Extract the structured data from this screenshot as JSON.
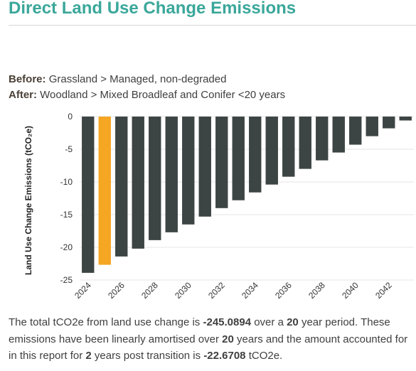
{
  "header": {
    "title": "Direct Land Use Change Emissions"
  },
  "transition": {
    "before_label": "Before:",
    "before_value": "Grassland > Managed, non-degraded",
    "after_label": "After:",
    "after_value": "Woodland > Mixed Broadleaf and Conifer <20 years"
  },
  "summary": {
    "line1_prefix": "The total tCO2e from land use change is",
    "total": "-245.0894",
    "line1_mid": "over a",
    "period_years": "20",
    "line1_suffix": "year period.",
    "line2_prefix": "These emissions have been linearly amortised over",
    "amortised_years": "20",
    "line2_mid": "years and the amount accounted for in this report for",
    "post_years": "2",
    "line2_mid2": "years post transition is",
    "reported": "-22.6708",
    "unit": "tCO2e."
  },
  "colors": {
    "accent": "#3aa79a",
    "bar": "#3d4444",
    "highlight": "#f5a623",
    "grid": "#e6e6e6"
  },
  "chart_data": {
    "type": "bar",
    "ylabel": "Land Use Change Emissions (tCO₂e)",
    "xlabel": "",
    "ylim": [
      -25,
      0
    ],
    "yticks": [
      0,
      -5,
      -10,
      -15,
      -20,
      -25
    ],
    "categories": [
      "2024",
      "2025",
      "2026",
      "2027",
      "2028",
      "2029",
      "2030",
      "2031",
      "2032",
      "2033",
      "2034",
      "2035",
      "2036",
      "2037",
      "2038",
      "2039",
      "2040",
      "2041",
      "2042",
      "2043"
    ],
    "xtick_labels": [
      "2024",
      "2026",
      "2028",
      "2030",
      "2032",
      "2034",
      "2036",
      "2038",
      "2040",
      "2042"
    ],
    "values": [
      -23.9,
      -22.67,
      -21.4,
      -20.2,
      -18.9,
      -17.7,
      -16.5,
      -15.3,
      -14.0,
      -12.8,
      -11.6,
      -10.4,
      -9.2,
      -8.0,
      -6.7,
      -5.5,
      -4.3,
      -3.0,
      -1.8,
      -0.6
    ],
    "highlight_category": "2025",
    "grid": true,
    "legend": "none"
  }
}
